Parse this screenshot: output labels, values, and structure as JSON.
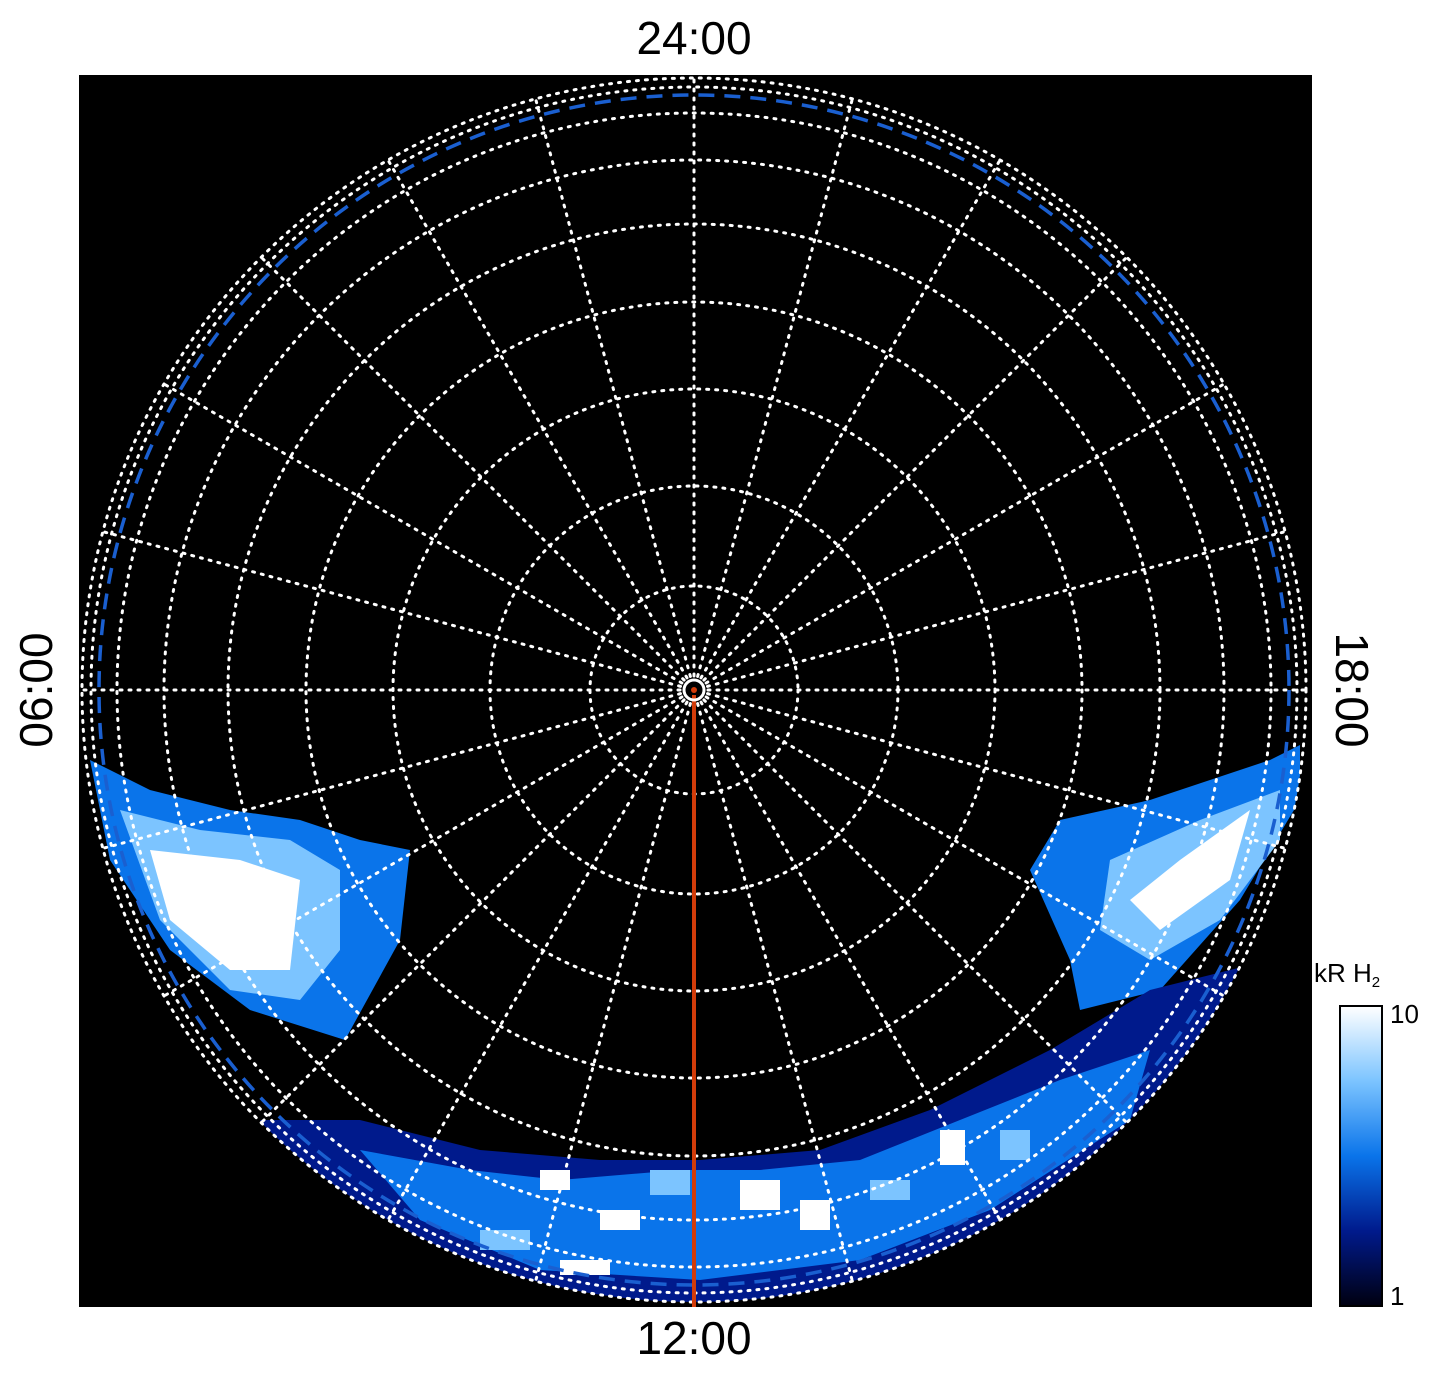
{
  "chart_data": {
    "type": "polar",
    "local_time_labels": {
      "top": "24:00",
      "bottom": "12:00",
      "left": "06:00",
      "right": "18:00"
    },
    "colorbar": {
      "label": "kR H",
      "label_subscript": "2",
      "lim": [
        1,
        10
      ],
      "ticks": [
        1,
        10
      ],
      "log": true,
      "colors": [
        "#000010",
        "#001a8c",
        "#0a74ea",
        "#7cc4ff",
        "#ffffff"
      ]
    }
  }
}
